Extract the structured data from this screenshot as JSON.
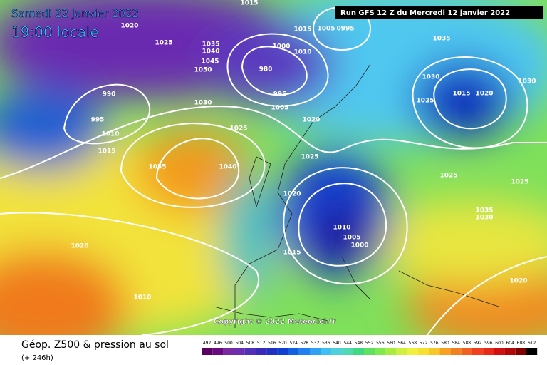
{
  "header": {
    "date": "Samedi 22 janvier 2022",
    "time": "19:00 locale",
    "run": "Run GFS 12 Z du Mercredi 12 janvier 2022"
  },
  "map": {
    "copyright": "Copyright © 2022 Meteociel.fr",
    "isobar_labels": [
      "1020",
      "1025",
      "990",
      "995",
      "1010",
      "1015",
      "1035",
      "1040",
      "1030",
      "1025",
      "1020",
      "1010",
      "1020",
      "1025",
      "1020",
      "1015",
      "1010",
      "1005",
      "1000",
      "1000",
      "980",
      "995",
      "1005",
      "1015",
      "1010",
      "1005",
      "0995",
      "1035",
      "1030",
      "1015",
      "1020",
      "1025",
      "1025",
      "1030",
      "1025",
      "1035",
      "1030",
      "1020",
      "1050",
      "1045",
      "1040",
      "1035",
      "1015"
    ]
  },
  "footer": {
    "title": "Géop. Z500 & pression au sol",
    "lead": "(+ 246h)",
    "scale": [
      492,
      496,
      500,
      504,
      508,
      512,
      516,
      520,
      524,
      528,
      532,
      536,
      540,
      544,
      548,
      552,
      556,
      560,
      564,
      568,
      572,
      576,
      580,
      584,
      588,
      592,
      596,
      600,
      604,
      608,
      612
    ]
  }
}
